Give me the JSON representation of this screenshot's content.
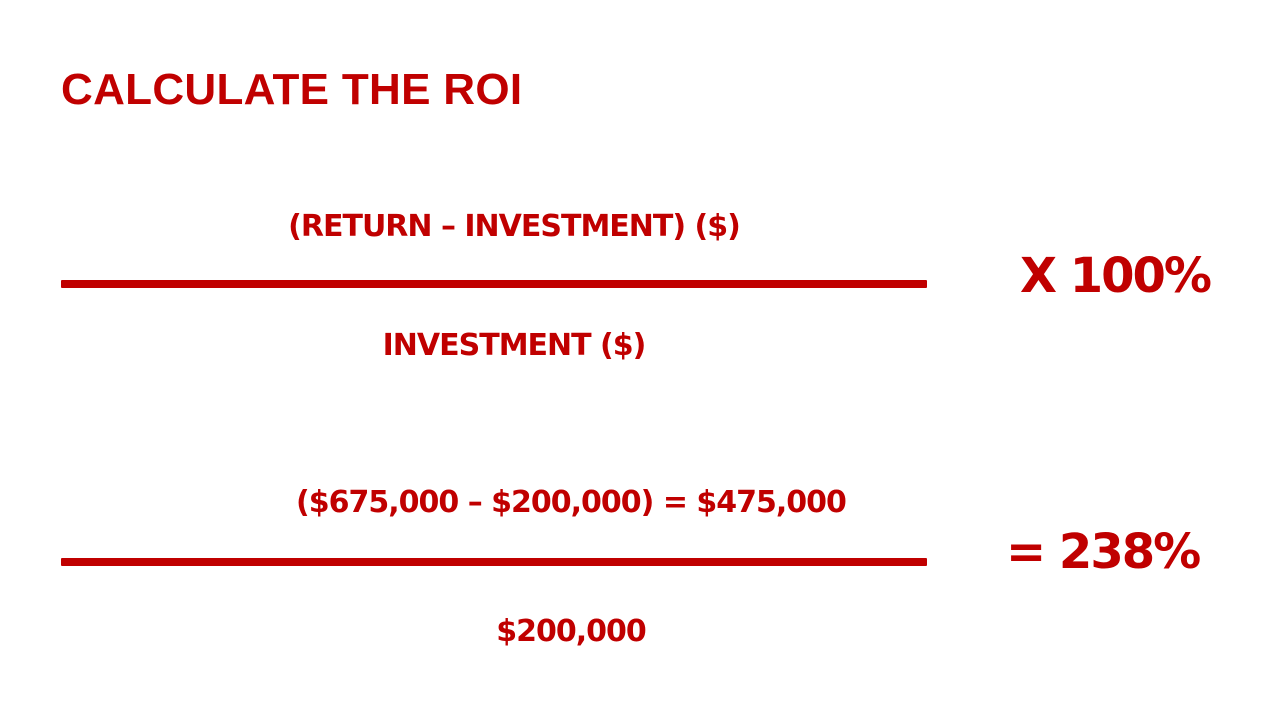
{
  "slide": {
    "title": "CALCULATE THE ROI"
  },
  "formula": {
    "numerator": "(RETURN – INVESTMENT) ($)",
    "denominator": "INVESTMENT ($)",
    "multiplier": "X 100%"
  },
  "example": {
    "numerator": "($675,000  – $200,000) = $475,000",
    "denominator": "$200,000",
    "result": "= 238%"
  },
  "colors": {
    "accent": "#c00000",
    "background": "#ffffff"
  }
}
